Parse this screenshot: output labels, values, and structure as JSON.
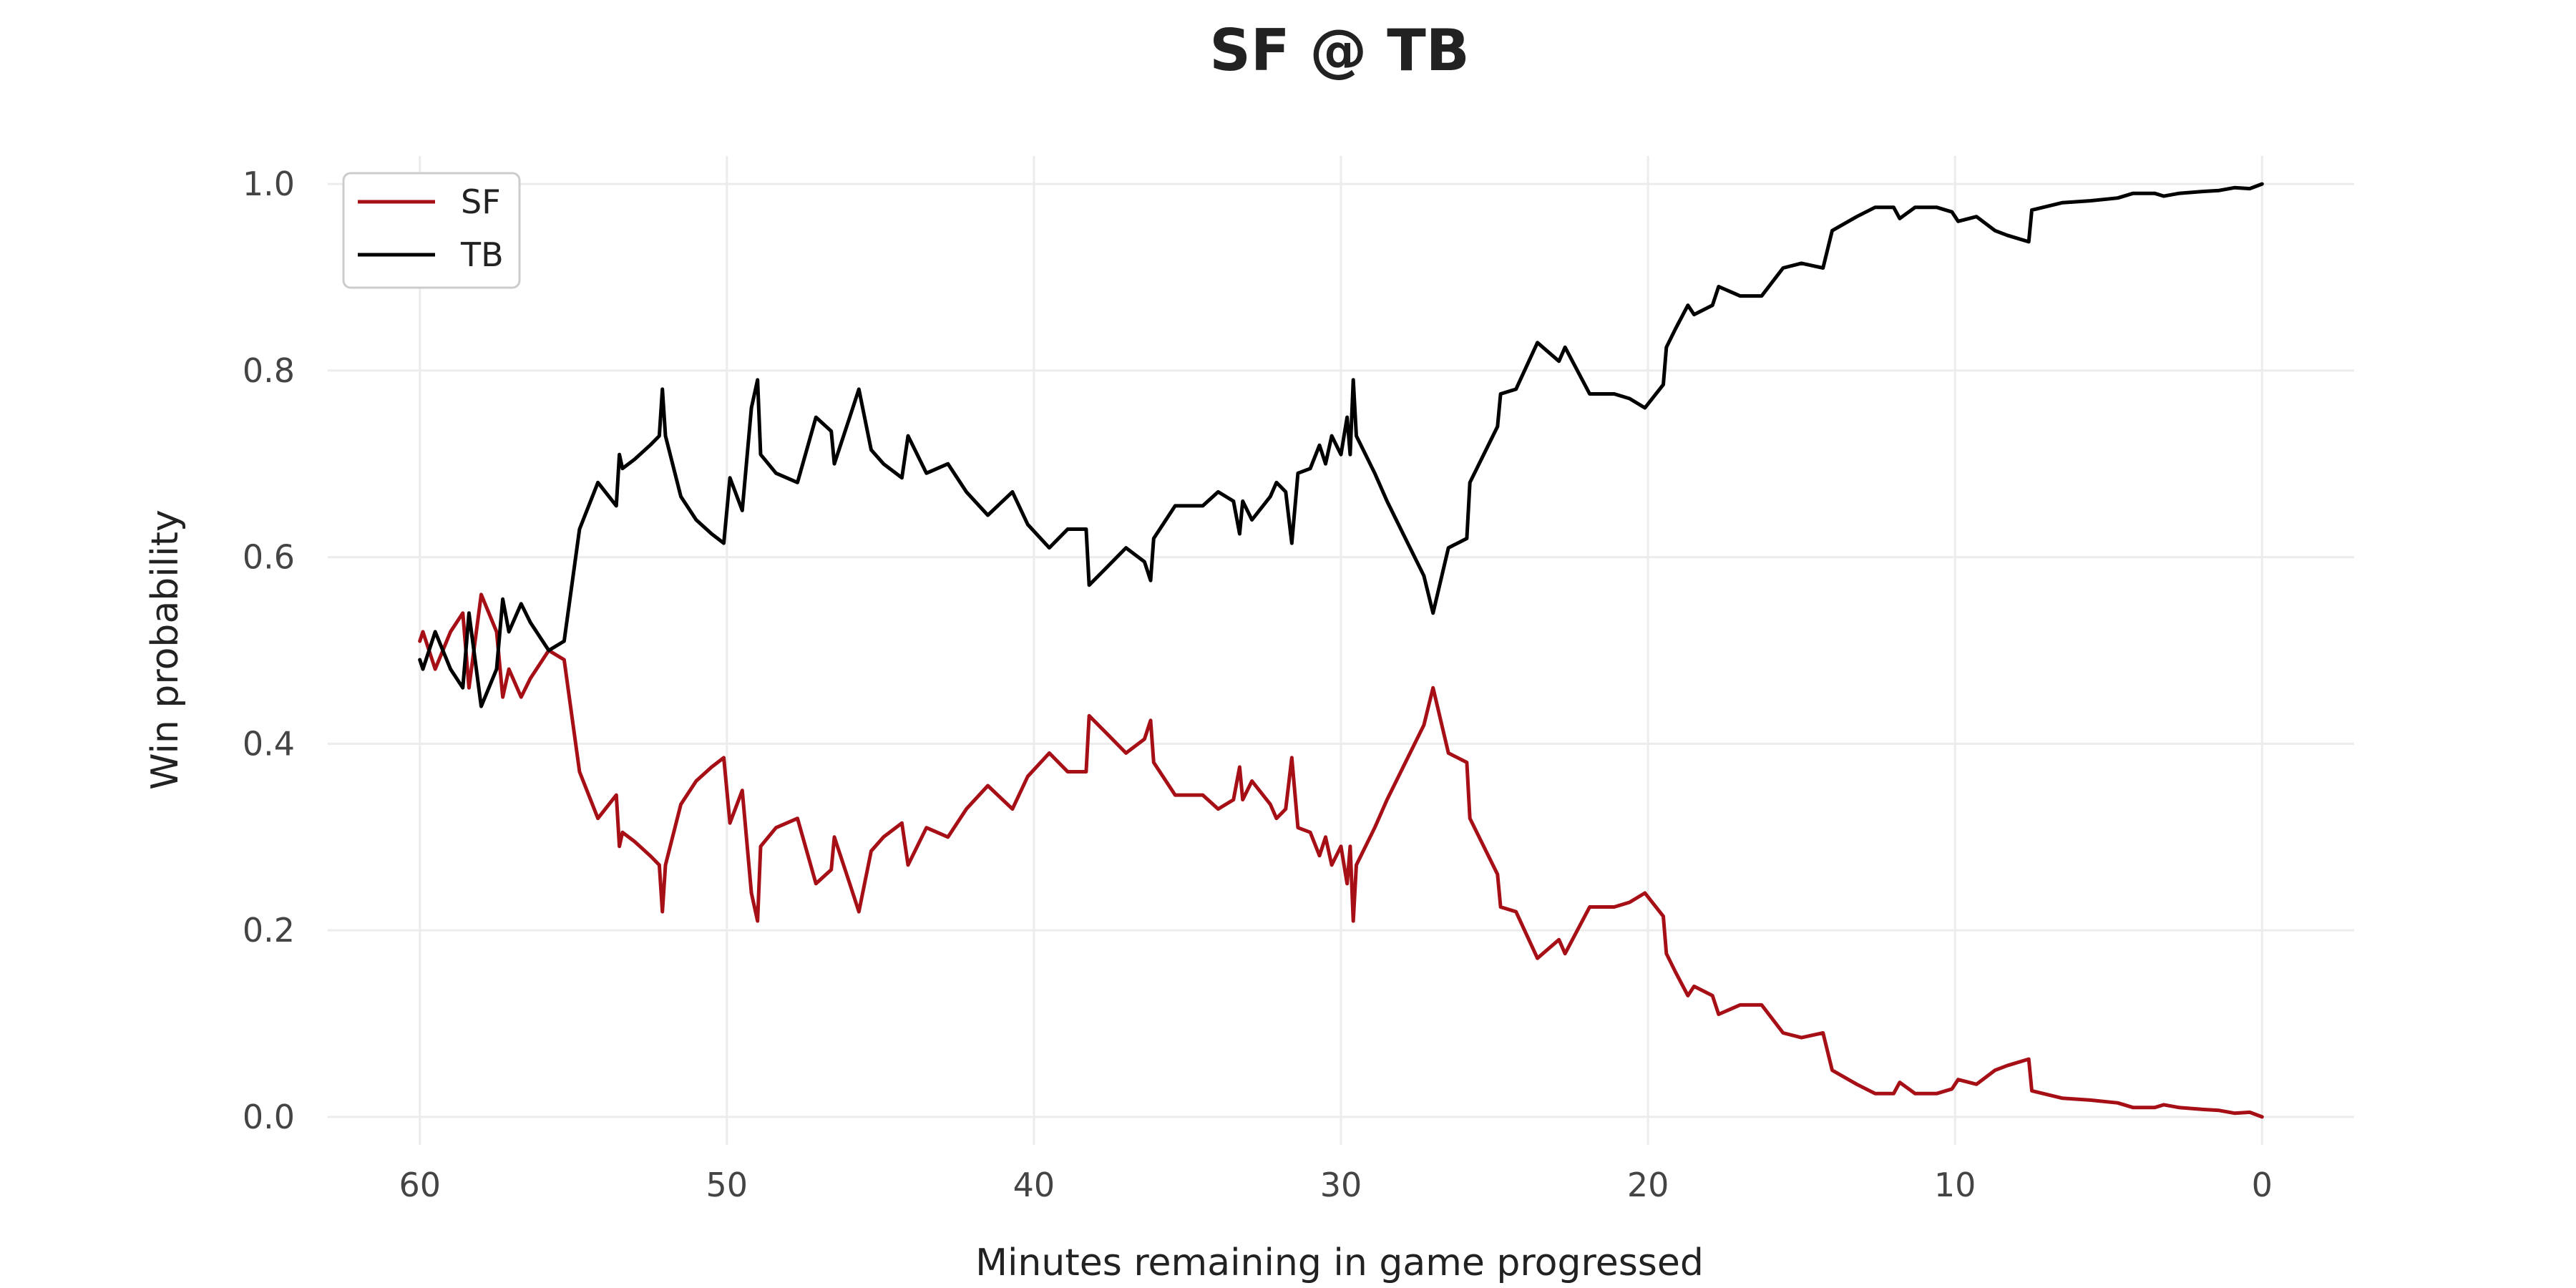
{
  "chart_data": {
    "type": "line",
    "title": "SF @ TB",
    "xlabel": "Minutes remaining in game progressed",
    "ylabel": "Win probability",
    "xlim": [
      63,
      -3
    ],
    "ylim": [
      -0.03,
      1.03
    ],
    "x_ticks": [
      60,
      50,
      40,
      30,
      20,
      10,
      0
    ],
    "x_tick_labels": [
      "60",
      "50",
      "40",
      "30",
      "20",
      "10",
      "0"
    ],
    "y_ticks": [
      0,
      0.2,
      0.4,
      0.6,
      0.8,
      1.0
    ],
    "y_tick_labels": [
      "0.0",
      "0.2",
      "0.4",
      "0.6",
      "0.8",
      "1.0"
    ],
    "grid": true,
    "legend": "top-left",
    "series": [
      {
        "name": "SF",
        "color": "#a50f15",
        "points": [
          [
            60,
            0.51
          ],
          [
            59.9,
            0.52
          ],
          [
            59.5,
            0.48
          ],
          [
            59,
            0.52
          ],
          [
            58.6,
            0.54
          ],
          [
            58.4,
            0.46
          ],
          [
            58,
            0.56
          ],
          [
            57.5,
            0.52
          ],
          [
            57.3,
            0.45
          ],
          [
            57.1,
            0.48
          ],
          [
            56.7,
            0.45
          ],
          [
            56.4,
            0.47
          ],
          [
            55.8,
            0.5
          ],
          [
            55.3,
            0.49
          ],
          [
            54.8,
            0.37
          ],
          [
            54.2,
            0.32
          ],
          [
            53.6,
            0.345
          ],
          [
            53.5,
            0.29
          ],
          [
            53.4,
            0.305
          ],
          [
            53,
            0.295
          ],
          [
            52.5,
            0.28
          ],
          [
            52.2,
            0.27
          ],
          [
            52.1,
            0.22
          ],
          [
            52,
            0.27
          ],
          [
            51.5,
            0.335
          ],
          [
            51,
            0.36
          ],
          [
            50.5,
            0.375
          ],
          [
            50.1,
            0.385
          ],
          [
            49.9,
            0.315
          ],
          [
            49.5,
            0.35
          ],
          [
            49.2,
            0.24
          ],
          [
            49,
            0.21
          ],
          [
            48.9,
            0.29
          ],
          [
            48.4,
            0.31
          ],
          [
            47.7,
            0.32
          ],
          [
            47.1,
            0.25
          ],
          [
            46.6,
            0.265
          ],
          [
            46.5,
            0.3
          ],
          [
            46,
            0.25
          ],
          [
            45.7,
            0.22
          ],
          [
            45.3,
            0.285
          ],
          [
            44.9,
            0.3
          ],
          [
            44.3,
            0.315
          ],
          [
            44.1,
            0.27
          ],
          [
            43.5,
            0.31
          ],
          [
            42.8,
            0.3
          ],
          [
            42.2,
            0.33
          ],
          [
            41.5,
            0.355
          ],
          [
            40.7,
            0.33
          ],
          [
            40.2,
            0.365
          ],
          [
            39.5,
            0.39
          ],
          [
            38.9,
            0.37
          ],
          [
            38.3,
            0.37
          ],
          [
            38.2,
            0.43
          ],
          [
            37.6,
            0.41
          ],
          [
            37,
            0.39
          ],
          [
            36.4,
            0.405
          ],
          [
            36.2,
            0.425
          ],
          [
            36.1,
            0.38
          ],
          [
            35.4,
            0.345
          ],
          [
            34.5,
            0.345
          ],
          [
            34,
            0.33
          ],
          [
            33.5,
            0.34
          ],
          [
            33.3,
            0.375
          ],
          [
            33.2,
            0.34
          ],
          [
            32.9,
            0.36
          ],
          [
            32.3,
            0.335
          ],
          [
            32.1,
            0.32
          ],
          [
            31.8,
            0.33
          ],
          [
            31.6,
            0.385
          ],
          [
            31.4,
            0.31
          ],
          [
            31,
            0.305
          ],
          [
            30.7,
            0.28
          ],
          [
            30.5,
            0.3
          ],
          [
            30.3,
            0.27
          ],
          [
            30,
            0.29
          ],
          [
            29.8,
            0.25
          ],
          [
            29.7,
            0.29
          ],
          [
            29.6,
            0.21
          ],
          [
            29.5,
            0.27
          ],
          [
            28.9,
            0.31
          ],
          [
            28.5,
            0.34
          ],
          [
            27.9,
            0.38
          ],
          [
            27.3,
            0.42
          ],
          [
            27,
            0.46
          ],
          [
            26.5,
            0.39
          ],
          [
            25.9,
            0.38
          ],
          [
            25.8,
            0.32
          ],
          [
            25.5,
            0.3
          ],
          [
            24.9,
            0.26
          ],
          [
            24.8,
            0.225
          ],
          [
            24.3,
            0.22
          ],
          [
            23.6,
            0.17
          ],
          [
            22.9,
            0.19
          ],
          [
            22.7,
            0.175
          ],
          [
            21.9,
            0.225
          ],
          [
            21.1,
            0.225
          ],
          [
            20.6,
            0.23
          ],
          [
            20.1,
            0.24
          ],
          [
            19.5,
            0.215
          ],
          [
            19.4,
            0.175
          ],
          [
            19.1,
            0.155
          ],
          [
            18.7,
            0.13
          ],
          [
            18.5,
            0.14
          ],
          [
            17.9,
            0.13
          ],
          [
            17.7,
            0.11
          ],
          [
            17,
            0.12
          ],
          [
            16.3,
            0.12
          ],
          [
            15.6,
            0.09
          ],
          [
            15,
            0.085
          ],
          [
            14.3,
            0.09
          ],
          [
            14,
            0.05
          ],
          [
            13.2,
            0.035
          ],
          [
            12.6,
            0.025
          ],
          [
            12,
            0.025
          ],
          [
            11.8,
            0.037
          ],
          [
            11.3,
            0.025
          ],
          [
            10.6,
            0.025
          ],
          [
            10.1,
            0.03
          ],
          [
            9.9,
            0.04
          ],
          [
            9.3,
            0.035
          ],
          [
            8.7,
            0.05
          ],
          [
            8.3,
            0.055
          ],
          [
            7.6,
            0.062
          ],
          [
            7.5,
            0.028
          ],
          [
            6.5,
            0.02
          ],
          [
            5.6,
            0.018
          ],
          [
            4.7,
            0.015
          ],
          [
            4.2,
            0.01
          ],
          [
            3.5,
            0.01
          ],
          [
            3.2,
            0.013
          ],
          [
            2.7,
            0.01
          ],
          [
            1.9,
            0.008
          ],
          [
            1.4,
            0.007
          ],
          [
            0.9,
            0.004
          ],
          [
            0.4,
            0.005
          ],
          [
            0,
            0.0
          ]
        ]
      },
      {
        "name": "TB",
        "color": "#000000",
        "points": [
          [
            60,
            0.49
          ],
          [
            59.9,
            0.48
          ],
          [
            59.5,
            0.52
          ],
          [
            59,
            0.48
          ],
          [
            58.6,
            0.46
          ],
          [
            58.4,
            0.54
          ],
          [
            58,
            0.44
          ],
          [
            57.5,
            0.48
          ],
          [
            57.3,
            0.555
          ],
          [
            57.1,
            0.52
          ],
          [
            56.7,
            0.55
          ],
          [
            56.4,
            0.53
          ],
          [
            55.8,
            0.5
          ],
          [
            55.3,
            0.51
          ],
          [
            54.8,
            0.63
          ],
          [
            54.2,
            0.68
          ],
          [
            53.6,
            0.655
          ],
          [
            53.5,
            0.71
          ],
          [
            53.4,
            0.695
          ],
          [
            53,
            0.705
          ],
          [
            52.5,
            0.72
          ],
          [
            52.2,
            0.73
          ],
          [
            52.1,
            0.78
          ],
          [
            52,
            0.73
          ],
          [
            51.5,
            0.665
          ],
          [
            51,
            0.64
          ],
          [
            50.5,
            0.625
          ],
          [
            50.1,
            0.615
          ],
          [
            49.9,
            0.685
          ],
          [
            49.5,
            0.65
          ],
          [
            49.2,
            0.76
          ],
          [
            49,
            0.79
          ],
          [
            48.9,
            0.71
          ],
          [
            48.4,
            0.69
          ],
          [
            47.7,
            0.68
          ],
          [
            47.1,
            0.75
          ],
          [
            46.6,
            0.735
          ],
          [
            46.5,
            0.7
          ],
          [
            46,
            0.75
          ],
          [
            45.7,
            0.78
          ],
          [
            45.3,
            0.715
          ],
          [
            44.9,
            0.7
          ],
          [
            44.3,
            0.685
          ],
          [
            44.1,
            0.73
          ],
          [
            43.5,
            0.69
          ],
          [
            42.8,
            0.7
          ],
          [
            42.2,
            0.67
          ],
          [
            41.5,
            0.645
          ],
          [
            40.7,
            0.67
          ],
          [
            40.2,
            0.635
          ],
          [
            39.5,
            0.61
          ],
          [
            38.9,
            0.63
          ],
          [
            38.3,
            0.63
          ],
          [
            38.2,
            0.57
          ],
          [
            37.6,
            0.59
          ],
          [
            37,
            0.61
          ],
          [
            36.4,
            0.595
          ],
          [
            36.2,
            0.575
          ],
          [
            36.1,
            0.62
          ],
          [
            35.4,
            0.655
          ],
          [
            34.5,
            0.655
          ],
          [
            34,
            0.67
          ],
          [
            33.5,
            0.66
          ],
          [
            33.3,
            0.625
          ],
          [
            33.2,
            0.66
          ],
          [
            32.9,
            0.64
          ],
          [
            32.3,
            0.665
          ],
          [
            32.1,
            0.68
          ],
          [
            31.8,
            0.67
          ],
          [
            31.6,
            0.615
          ],
          [
            31.4,
            0.69
          ],
          [
            31,
            0.695
          ],
          [
            30.7,
            0.72
          ],
          [
            30.5,
            0.7
          ],
          [
            30.3,
            0.73
          ],
          [
            30,
            0.71
          ],
          [
            29.8,
            0.75
          ],
          [
            29.7,
            0.71
          ],
          [
            29.6,
            0.79
          ],
          [
            29.5,
            0.73
          ],
          [
            28.9,
            0.69
          ],
          [
            28.5,
            0.66
          ],
          [
            27.9,
            0.62
          ],
          [
            27.3,
            0.58
          ],
          [
            27,
            0.54
          ],
          [
            26.5,
            0.61
          ],
          [
            25.9,
            0.62
          ],
          [
            25.8,
            0.68
          ],
          [
            25.5,
            0.7
          ],
          [
            24.9,
            0.74
          ],
          [
            24.8,
            0.775
          ],
          [
            24.3,
            0.78
          ],
          [
            23.6,
            0.83
          ],
          [
            22.9,
            0.81
          ],
          [
            22.7,
            0.825
          ],
          [
            21.9,
            0.775
          ],
          [
            21.1,
            0.775
          ],
          [
            20.6,
            0.77
          ],
          [
            20.1,
            0.76
          ],
          [
            19.5,
            0.785
          ],
          [
            19.4,
            0.825
          ],
          [
            19.1,
            0.845
          ],
          [
            18.7,
            0.87
          ],
          [
            18.5,
            0.86
          ],
          [
            17.9,
            0.87
          ],
          [
            17.7,
            0.89
          ],
          [
            17,
            0.88
          ],
          [
            16.3,
            0.88
          ],
          [
            15.6,
            0.91
          ],
          [
            15,
            0.915
          ],
          [
            14.3,
            0.91
          ],
          [
            14,
            0.95
          ],
          [
            13.2,
            0.965
          ],
          [
            12.6,
            0.975
          ],
          [
            12,
            0.975
          ],
          [
            11.8,
            0.963
          ],
          [
            11.3,
            0.975
          ],
          [
            10.6,
            0.975
          ],
          [
            10.1,
            0.97
          ],
          [
            9.9,
            0.96
          ],
          [
            9.3,
            0.965
          ],
          [
            8.7,
            0.95
          ],
          [
            8.3,
            0.945
          ],
          [
            7.6,
            0.938
          ],
          [
            7.5,
            0.972
          ],
          [
            6.5,
            0.98
          ],
          [
            5.6,
            0.982
          ],
          [
            4.7,
            0.985
          ],
          [
            4.2,
            0.99
          ],
          [
            3.5,
            0.99
          ],
          [
            3.2,
            0.987
          ],
          [
            2.7,
            0.99
          ],
          [
            1.9,
            0.992
          ],
          [
            1.4,
            0.993
          ],
          [
            0.9,
            0.996
          ],
          [
            0.4,
            0.995
          ],
          [
            0,
            1.0
          ]
        ]
      }
    ]
  }
}
